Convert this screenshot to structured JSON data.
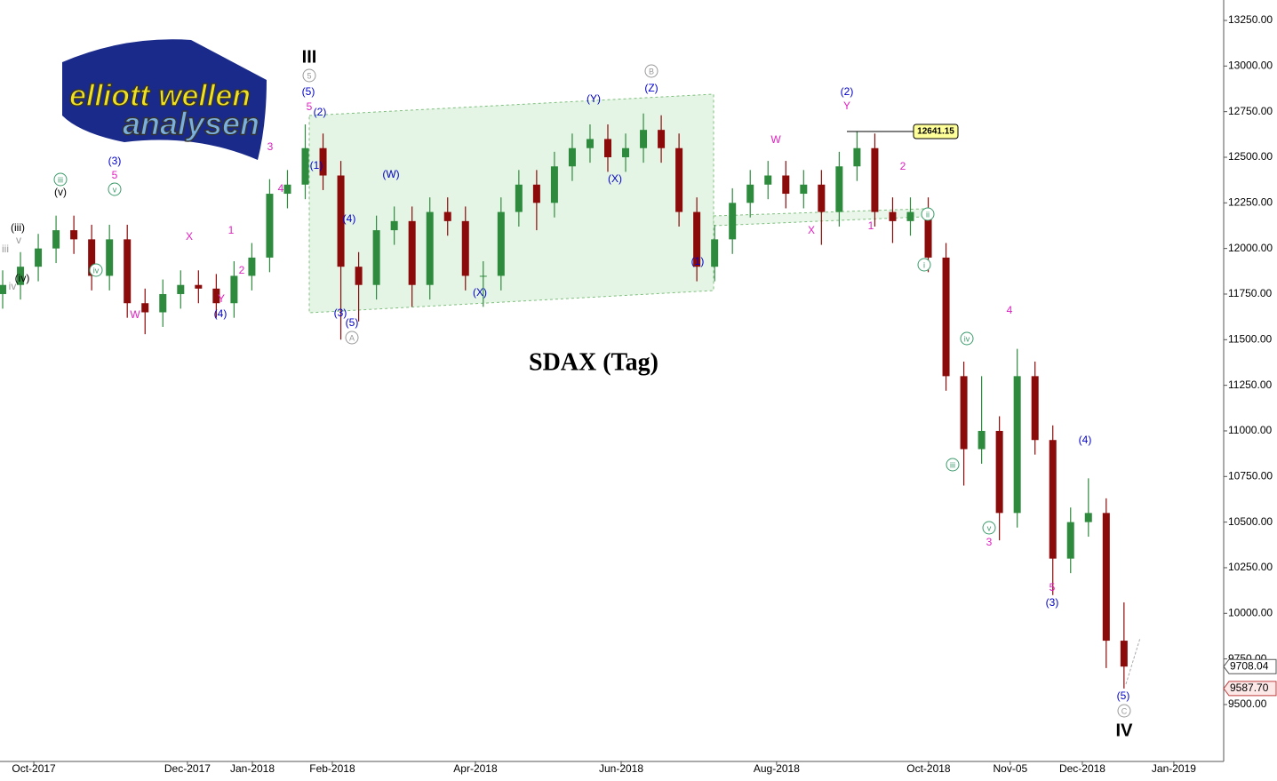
{
  "logo": [
    "elliott wellen",
    "analysen"
  ],
  "chart_data": {
    "type": "candlestick",
    "title": "SDAX (Tag)",
    "categories": [
      null,
      null,
      null,
      null,
      null,
      null,
      null,
      null,
      null,
      null,
      null,
      null,
      null,
      null,
      null,
      null,
      null,
      null,
      null,
      null,
      null,
      null,
      null,
      null,
      null,
      null,
      null,
      null,
      null,
      null,
      null,
      null,
      null,
      null,
      null,
      null,
      null,
      null,
      null,
      null,
      null,
      null,
      null,
      null,
      null,
      null,
      null,
      null,
      null,
      null,
      null,
      null,
      null,
      null,
      null,
      null,
      null,
      null,
      null,
      null,
      null,
      null,
      null,
      null
    ],
    "open": [
      11750,
      11800,
      11900,
      12000,
      12100,
      12050,
      11850,
      12050,
      11700,
      11650,
      11750,
      11800,
      11780,
      11700,
      11850,
      11950,
      12300,
      12350,
      12550,
      12400,
      11900,
      11800,
      12100,
      12150,
      11800,
      12200,
      12150,
      11850,
      11850,
      12200,
      12350,
      12250,
      12450,
      12550,
      12600,
      12500,
      12550,
      12650,
      12550,
      12200,
      11900,
      12050,
      12250,
      12350,
      12400,
      12300,
      12350,
      12200,
      12450,
      12550,
      12200,
      12150,
      12200,
      11950,
      11300,
      10900,
      11000,
      10550,
      11300,
      10950,
      10300,
      10500,
      10550,
      9850
    ],
    "high": [
      11880,
      11980,
      12080,
      12180,
      12180,
      12130,
      12130,
      12130,
      11780,
      11830,
      11880,
      11880,
      11860,
      11930,
      12030,
      12380,
      12430,
      12680,
      12630,
      12480,
      11980,
      12180,
      12230,
      12230,
      12280,
      12280,
      12230,
      11930,
      12280,
      12430,
      12430,
      12530,
      12630,
      12680,
      12680,
      12630,
      12740,
      12730,
      12630,
      12280,
      12130,
      12330,
      12430,
      12480,
      12480,
      12430,
      12430,
      12530,
      12641.15,
      12630,
      12280,
      12280,
      12280,
      12030,
      11380,
      11300,
      11080,
      11450,
      11380,
      11030,
      10580,
      10740,
      10630,
      10060
    ],
    "low": [
      11670,
      11720,
      11820,
      11920,
      11970,
      11770,
      11770,
      11620,
      11530,
      11570,
      11670,
      11700,
      11620,
      11620,
      11770,
      11870,
      12220,
      12270,
      12320,
      11500,
      11600,
      11720,
      12020,
      11680,
      11720,
      12070,
      11770,
      11680,
      11770,
      12120,
      12100,
      12170,
      12370,
      12470,
      12420,
      12420,
      12470,
      12470,
      12120,
      11820,
      11820,
      11970,
      12170,
      12270,
      12220,
      12220,
      12020,
      12120,
      12370,
      12120,
      12030,
      12070,
      11870,
      11220,
      10700,
      10820,
      10400,
      10470,
      10870,
      10100,
      10220,
      10420,
      9700,
      9587.7
    ],
    "close": [
      11800,
      11900,
      12000,
      12100,
      12050,
      11850,
      12050,
      11700,
      11650,
      11750,
      11800,
      11780,
      11700,
      11850,
      11950,
      12300,
      12350,
      12550,
      12400,
      11900,
      11800,
      12100,
      12150,
      11800,
      12200,
      12150,
      11850,
      11850,
      12200,
      12350,
      12250,
      12450,
      12550,
      12600,
      12500,
      12550,
      12650,
      12550,
      12200,
      11900,
      12050,
      12250,
      12350,
      12400,
      12300,
      12350,
      12200,
      12450,
      12550,
      12200,
      12150,
      12200,
      11950,
      11300,
      10900,
      11000,
      10550,
      11300,
      10950,
      10300,
      10500,
      10550,
      9850,
      9708.04
    ],
    "up_color": "#2e8b3e",
    "down_color": "#8b0a0a",
    "ylim": [
      9188,
      13362
    ],
    "yticks": [
      {
        "value": 9500,
        "label": "9500.00"
      },
      {
        "value": 9750,
        "label": "9750.00"
      },
      {
        "value": 10000,
        "label": "10000.00"
      },
      {
        "value": 10250,
        "label": "10250.00"
      },
      {
        "value": 10500,
        "label": "10500.00"
      },
      {
        "value": 10750,
        "label": "10750.00"
      },
      {
        "value": 11000,
        "label": "11000.00"
      },
      {
        "value": 11250,
        "label": "11250.00"
      },
      {
        "value": 11500,
        "label": "11500.00"
      },
      {
        "value": 11750,
        "label": "11750.00"
      },
      {
        "value": 12000,
        "label": "12000.00"
      },
      {
        "value": 12250,
        "label": "12250.00"
      },
      {
        "value": 12500,
        "label": "12500.00"
      },
      {
        "value": 12750,
        "label": "12750.00"
      },
      {
        "value": 13000,
        "label": "13000.00"
      },
      {
        "value": 13250,
        "label": "13250.00"
      }
    ],
    "xlim": [
      -0.15,
      68.6
    ],
    "xticks": [
      {
        "value": 1.75,
        "label": "Oct-2017"
      },
      {
        "value": 10.38,
        "label": "Dec-2017"
      },
      {
        "value": 14.03,
        "label": "Jan-2018"
      },
      {
        "value": 18.52,
        "label": "Feb-2018"
      },
      {
        "value": 26.56,
        "label": "Apr-2018"
      },
      {
        "value": 34.75,
        "label": "Jun-2018"
      },
      {
        "value": 43.48,
        "label": "Aug-2018"
      },
      {
        "value": 52.02,
        "label": "Oct-2018"
      },
      {
        "value": 56.61,
        "label": "Nov-05"
      },
      {
        "value": 60.66,
        "label": "Dec-2018"
      },
      {
        "value": 65.8,
        "label": "Jan-2019"
      }
    ],
    "high_marker": {
      "value": 12641.15,
      "label": "12641.15"
    },
    "price_labels": [
      {
        "value": 9708.04,
        "label": "9708.04"
      },
      {
        "value": 9587.7,
        "label": "9587.70"
      }
    ],
    "annotations": [
      {
        "text": "III",
        "color": "#000000"
      },
      {
        "text": "IV",
        "color": "#000000"
      },
      {
        "text": "5",
        "color": "#999999",
        "circled": true
      },
      {
        "text": "A",
        "color": "#999999",
        "circled": true
      },
      {
        "text": "B",
        "color": "#999999",
        "circled": true
      },
      {
        "text": "C",
        "color": "#999999",
        "circled": true
      },
      {
        "text": "(5)",
        "color": "#0000cc"
      },
      {
        "text": "(2)",
        "color": "#0000cc"
      },
      {
        "text": "(1)",
        "color": "#0000cc"
      },
      {
        "text": "(4)",
        "color": "#0000cc"
      },
      {
        "text": "(3)",
        "color": "#0000cc"
      },
      {
        "text": "(5)",
        "color": "#0000cc"
      },
      {
        "text": "(W)",
        "color": "#0000cc"
      },
      {
        "text": "(X)",
        "color": "#0000cc"
      },
      {
        "text": "(Y)",
        "color": "#0000cc"
      },
      {
        "text": "(Z)",
        "color": "#0000cc"
      },
      {
        "text": "(X)",
        "color": "#0000cc"
      },
      {
        "text": "(1)",
        "color": "#0000cc"
      },
      {
        "text": "(2)",
        "color": "#0000cc"
      },
      {
        "text": "(4)",
        "color": "#0000cc"
      },
      {
        "text": "(3)",
        "color": "#0000cc"
      },
      {
        "text": "(5)",
        "color": "#0000cc"
      },
      {
        "text": "(3)",
        "color": "#0000cc"
      },
      {
        "text": "(4)",
        "color": "#0000cc"
      },
      {
        "text": "5",
        "color": "#e020c0"
      },
      {
        "text": "3",
        "color": "#e020c0"
      },
      {
        "text": "4",
        "color": "#e020c0"
      },
      {
        "text": "1",
        "color": "#e020c0"
      },
      {
        "text": "2",
        "color": "#e020c0"
      },
      {
        "text": "X",
        "color": "#e020c0"
      },
      {
        "text": "W",
        "color": "#e020c0"
      },
      {
        "text": "Y",
        "color": "#e020c0"
      },
      {
        "text": "5",
        "color": "#e020c0"
      },
      {
        "text": "W",
        "color": "#e020c0"
      },
      {
        "text": "Y",
        "color": "#e020c0"
      },
      {
        "text": "X",
        "color": "#e020c0"
      },
      {
        "text": "1",
        "color": "#e020c0"
      },
      {
        "text": "2",
        "color": "#e020c0"
      },
      {
        "text": "4",
        "color": "#e020c0"
      },
      {
        "text": "3",
        "color": "#e020c0"
      },
      {
        "text": "5",
        "color": "#e020c0"
      },
      {
        "text": "iii",
        "color": "#3a9a6a",
        "circled": true
      },
      {
        "text": "v",
        "color": "#3a9a6a",
        "circled": true
      },
      {
        "text": "iv",
        "color": "#3a9a6a",
        "circled": true
      },
      {
        "text": "ii",
        "color": "#3a9a6a",
        "circled": true
      },
      {
        "text": "i",
        "color": "#3a9a6a",
        "circled": true
      },
      {
        "text": "iv",
        "color": "#3a9a6a",
        "circled": true
      },
      {
        "text": "iii",
        "color": "#3a9a6a",
        "circled": true
      },
      {
        "text": "v",
        "color": "#3a9a6a",
        "circled": true
      },
      {
        "text": "(v)",
        "color": "#000000"
      },
      {
        "text": "(iii)",
        "color": "#000000"
      },
      {
        "text": "(iv)",
        "color": "#000000"
      },
      {
        "text": "iii",
        "color": "#999999"
      },
      {
        "text": "v",
        "color": "#999999"
      },
      {
        "text": "iv",
        "color": "#999999"
      }
    ]
  }
}
